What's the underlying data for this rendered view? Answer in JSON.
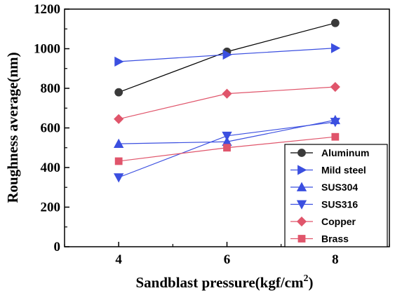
{
  "chart_data": {
    "type": "line",
    "xlabel": "Sandblast pressure(kgf/cm",
    "xlabel_sup": "2",
    "xlabel_close": ")",
    "ylabel": "Roughness average(nm)",
    "x": [
      4,
      6,
      8
    ],
    "xlim": [
      3,
      9
    ],
    "ylim": [
      0,
      1200
    ],
    "xticks": [
      "4",
      "6",
      "8"
    ],
    "yticks": [
      "0",
      "200",
      "400",
      "600",
      "800",
      "1000",
      "1200"
    ],
    "grid": false,
    "legend_position": "bottom-right",
    "series": [
      {
        "name": "Aluminum",
        "values": [
          780,
          985,
          1130
        ],
        "line": "#000000",
        "fill": "#3a3a3a",
        "marker": "circle"
      },
      {
        "name": "Mild steel",
        "values": [
          935,
          970,
          1003
        ],
        "line": "#3b4fe0",
        "fill": "#3b4fe0",
        "marker": "triangle-right"
      },
      {
        "name": "SUS304",
        "values": [
          520,
          530,
          640
        ],
        "line": "#3b4fe0",
        "fill": "#3b4fe0",
        "marker": "triangle-up"
      },
      {
        "name": "SUS316",
        "values": [
          350,
          560,
          630
        ],
        "line": "#3b4fe0",
        "fill": "#3b4fe0",
        "marker": "triangle-down"
      },
      {
        "name": "Copper",
        "values": [
          645,
          773,
          807
        ],
        "line": "#e0556b",
        "fill": "#e0556b",
        "marker": "diamond"
      },
      {
        "name": "Brass",
        "values": [
          432,
          500,
          555
        ],
        "line": "#e0556b",
        "fill": "#e0556b",
        "marker": "square"
      }
    ]
  }
}
